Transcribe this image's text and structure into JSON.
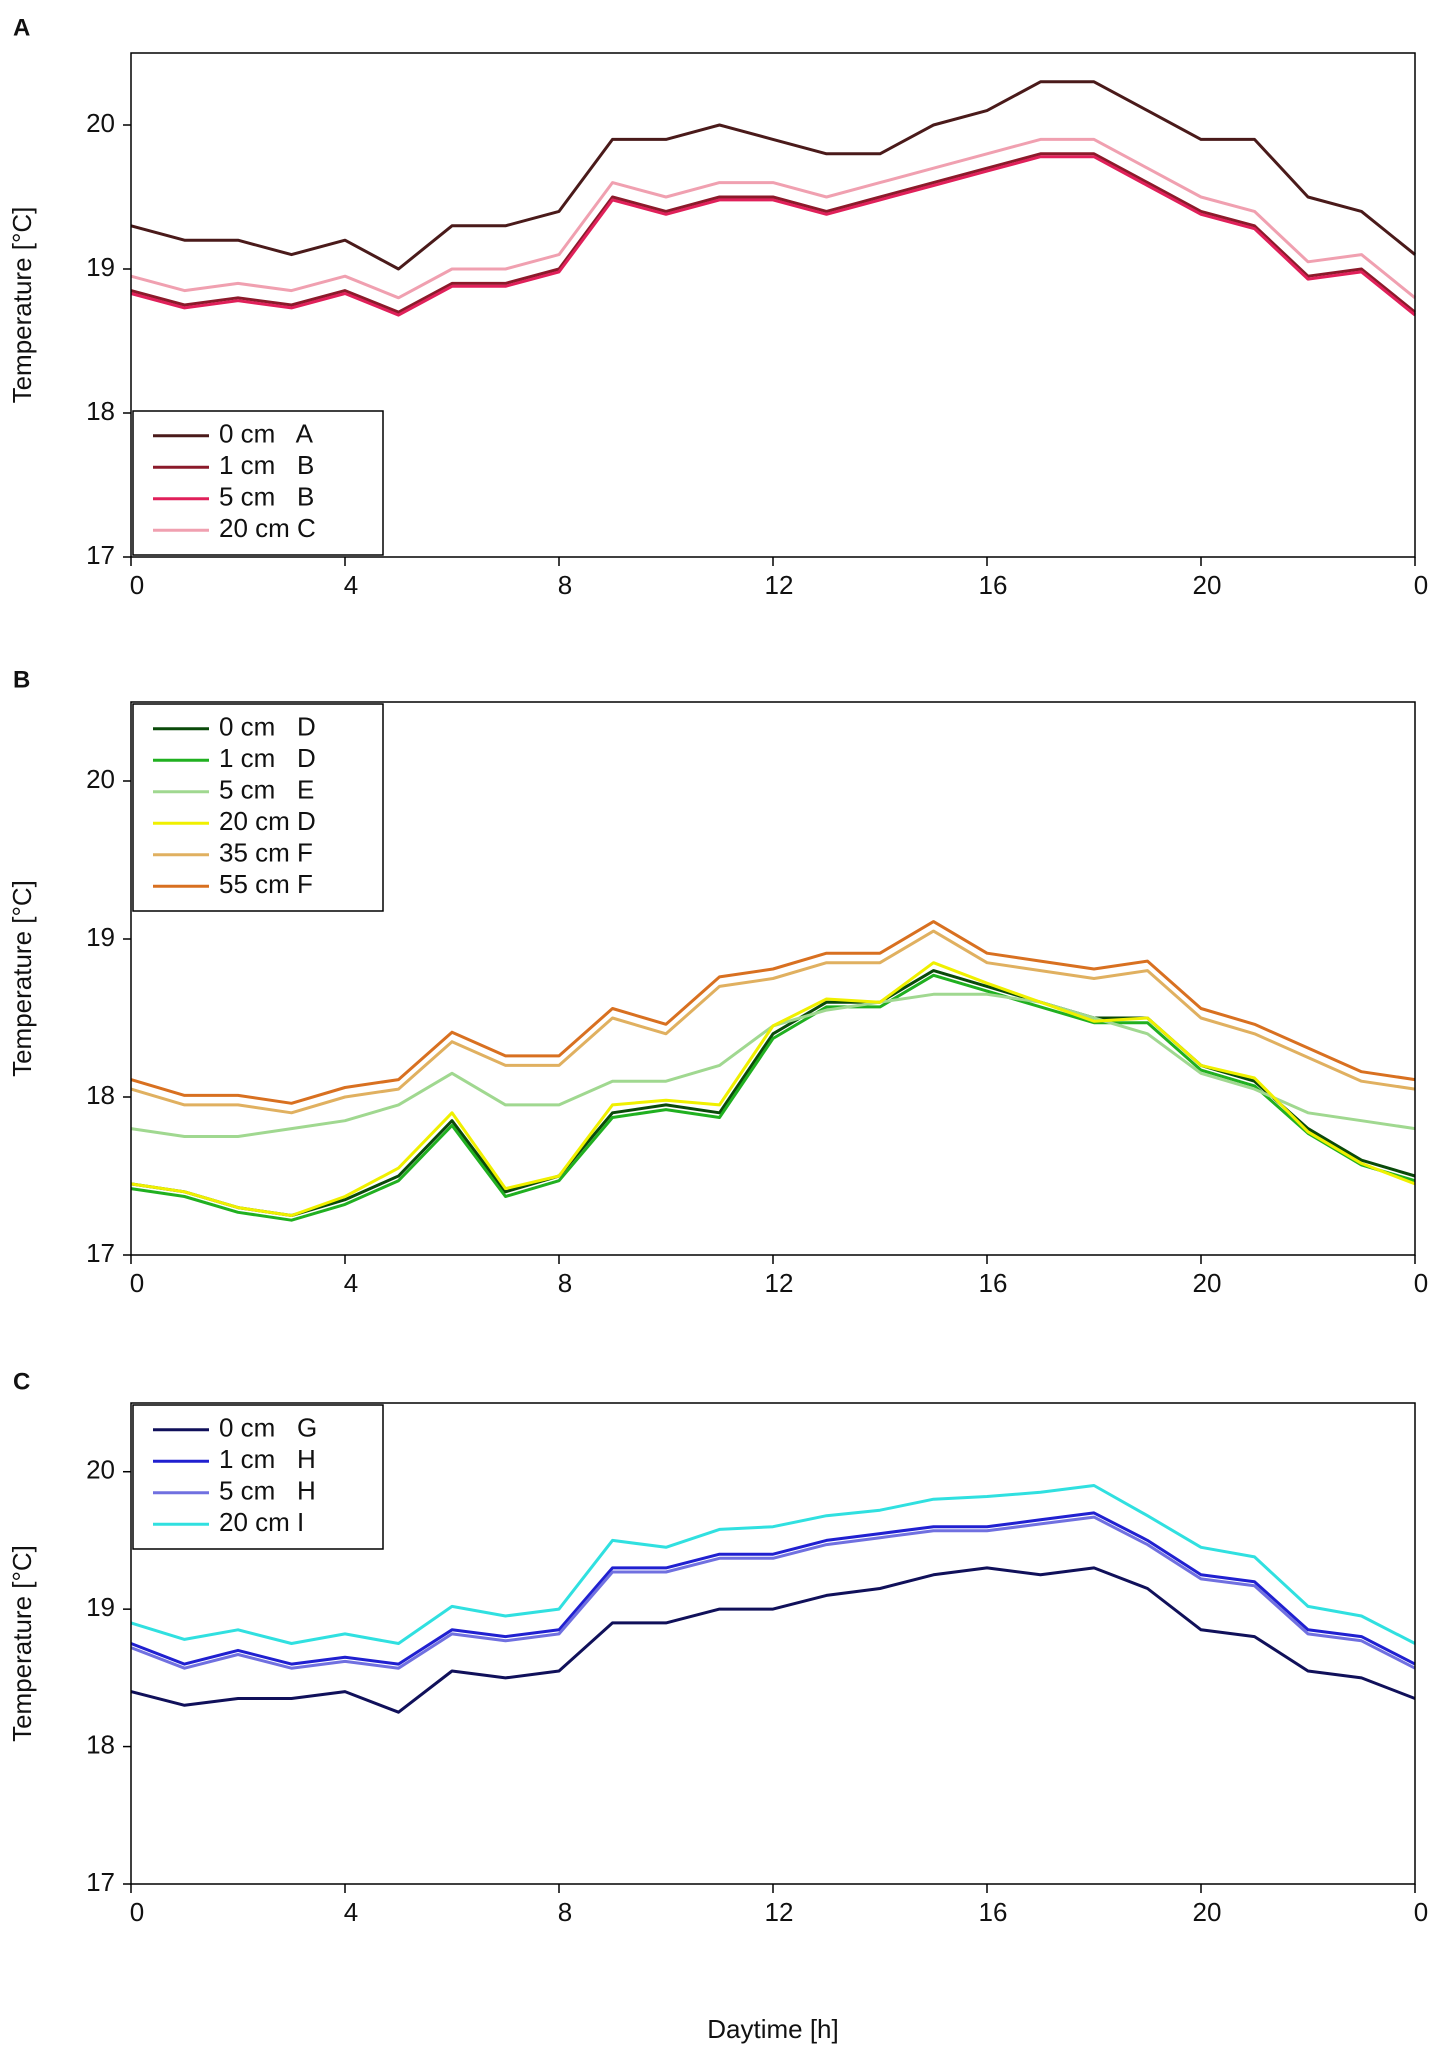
{
  "chart_data": [
    {
      "type": "line",
      "panel": "A",
      "ylabel": "Temperature [°C]",
      "legend": "lower left",
      "x": [
        0,
        1,
        2,
        3,
        4,
        5,
        6,
        7,
        8,
        9,
        10,
        11,
        12,
        13,
        14,
        15,
        16,
        17,
        18,
        19,
        20,
        21,
        22,
        23,
        24
      ],
      "xlim": [
        0,
        24
      ],
      "xticks": [
        0,
        4,
        8,
        12,
        16,
        20,
        {
          "value": 24,
          "label": "0"
        }
      ],
      "ylim": [
        17,
        20.5
      ],
      "yticks": [
        17,
        18,
        19,
        20
      ],
      "series": [
        {
          "name": "0 cm   A",
          "color": "#4a1a1a",
          "values": [
            19.3,
            19.2,
            19.2,
            19.1,
            19.2,
            19.0,
            19.3,
            19.3,
            19.4,
            19.9,
            19.9,
            20.0,
            19.9,
            19.8,
            19.8,
            20.0,
            20.1,
            20.3,
            20.3,
            20.1,
            19.9,
            19.9,
            19.5,
            19.4,
            19.1
          ]
        },
        {
          "name": "1 cm   B",
          "color": "#8b1a2a",
          "values": [
            18.85,
            18.75,
            18.8,
            18.75,
            18.85,
            18.7,
            18.9,
            18.9,
            19.0,
            19.5,
            19.4,
            19.5,
            19.5,
            19.4,
            19.5,
            19.6,
            19.7,
            19.8,
            19.8,
            19.6,
            19.4,
            19.3,
            18.95,
            19.0,
            18.7
          ]
        },
        {
          "name": "5 cm   B",
          "color": "#e0205a",
          "values": [
            18.83,
            18.73,
            18.78,
            18.73,
            18.83,
            18.68,
            18.88,
            18.88,
            18.98,
            19.48,
            19.38,
            19.48,
            19.48,
            19.38,
            19.48,
            19.58,
            19.68,
            19.78,
            19.78,
            19.58,
            19.38,
            19.28,
            18.93,
            18.98,
            18.68
          ]
        },
        {
          "name": "20 cm C",
          "color": "#f0a0b0",
          "values": [
            18.95,
            18.85,
            18.9,
            18.85,
            18.95,
            18.8,
            19.0,
            19.0,
            19.1,
            19.6,
            19.5,
            19.6,
            19.6,
            19.5,
            19.6,
            19.7,
            19.8,
            19.9,
            19.9,
            19.7,
            19.5,
            19.4,
            19.05,
            19.1,
            18.8
          ]
        }
      ]
    },
    {
      "type": "line",
      "panel": "B",
      "ylabel": "Temperature [°C]",
      "legend": "upper left",
      "x": [
        0,
        1,
        2,
        3,
        4,
        5,
        6,
        7,
        8,
        9,
        10,
        11,
        12,
        13,
        14,
        15,
        16,
        17,
        18,
        19,
        20,
        21,
        22,
        23,
        24
      ],
      "xlim": [
        0,
        24
      ],
      "xticks": [
        0,
        4,
        8,
        12,
        16,
        20,
        {
          "value": 24,
          "label": "0"
        }
      ],
      "ylim": [
        17,
        20.5
      ],
      "yticks": [
        17,
        18,
        19,
        20
      ],
      "series": [
        {
          "name": "0 cm   D",
          "color": "#0a4a0a",
          "values": [
            17.45,
            17.4,
            17.3,
            17.25,
            17.35,
            17.5,
            17.85,
            17.4,
            17.5,
            17.9,
            17.95,
            17.9,
            18.4,
            18.6,
            18.6,
            18.8,
            18.7,
            18.6,
            18.5,
            18.5,
            18.2,
            18.1,
            17.8,
            17.6,
            17.5
          ]
        },
        {
          "name": "1 cm   D",
          "color": "#20b020",
          "values": [
            17.42,
            17.37,
            17.27,
            17.22,
            17.32,
            17.47,
            17.82,
            17.37,
            17.47,
            17.87,
            17.92,
            17.87,
            18.37,
            18.57,
            18.57,
            18.77,
            18.67,
            18.57,
            18.47,
            18.47,
            18.17,
            18.07,
            17.77,
            17.57,
            17.47
          ]
        },
        {
          "name": "5 cm   E",
          "color": "#a0d890",
          "values": [
            17.8,
            17.75,
            17.75,
            17.8,
            17.85,
            17.95,
            18.15,
            17.95,
            17.95,
            18.1,
            18.1,
            18.2,
            18.45,
            18.55,
            18.6,
            18.65,
            18.65,
            18.6,
            18.5,
            18.4,
            18.15,
            18.05,
            17.9,
            17.85,
            17.8
          ]
        },
        {
          "name": "20 cm D",
          "color": "#f0f000",
          "values": [
            17.45,
            17.4,
            17.3,
            17.25,
            17.37,
            17.55,
            17.9,
            17.42,
            17.5,
            17.95,
            17.98,
            17.95,
            18.45,
            18.62,
            18.6,
            18.85,
            18.72,
            18.6,
            18.48,
            18.5,
            18.2,
            18.12,
            17.78,
            17.58,
            17.45
          ]
        },
        {
          "name": "35 cm F",
          "color": "#e0b060",
          "values": [
            18.05,
            17.95,
            17.95,
            17.9,
            18.0,
            18.05,
            18.35,
            18.2,
            18.2,
            18.5,
            18.4,
            18.7,
            18.75,
            18.85,
            18.85,
            19.05,
            18.85,
            18.8,
            18.75,
            18.8,
            18.5,
            18.4,
            18.25,
            18.1,
            18.05
          ]
        },
        {
          "name": "55 cm F",
          "color": "#d87020",
          "values": [
            18.11,
            18.01,
            18.01,
            17.96,
            18.06,
            18.11,
            18.41,
            18.26,
            18.26,
            18.56,
            18.46,
            18.76,
            18.81,
            18.91,
            18.91,
            19.11,
            18.91,
            18.86,
            18.81,
            18.86,
            18.56,
            18.46,
            18.31,
            18.16,
            18.11
          ]
        }
      ]
    },
    {
      "type": "line",
      "panel": "C",
      "ylabel": "Temperature [°C]",
      "xlabel": "Daytime [h]",
      "legend": "upper left",
      "x": [
        0,
        1,
        2,
        3,
        4,
        5,
        6,
        7,
        8,
        9,
        10,
        11,
        12,
        13,
        14,
        15,
        16,
        17,
        18,
        19,
        20,
        21,
        22,
        23,
        24
      ],
      "xlim": [
        0,
        24
      ],
      "xticks": [
        0,
        4,
        8,
        12,
        16,
        20,
        {
          "value": 24,
          "label": "0"
        }
      ],
      "ylim": [
        17,
        20.5
      ],
      "yticks": [
        17,
        18,
        19,
        20
      ],
      "series": [
        {
          "name": "0 cm   G",
          "color": "#10105a",
          "values": [
            18.4,
            18.3,
            18.35,
            18.35,
            18.4,
            18.25,
            18.55,
            18.5,
            18.55,
            18.9,
            18.9,
            19.0,
            19.0,
            19.1,
            19.15,
            19.25,
            19.3,
            19.25,
            19.3,
            19.15,
            18.85,
            18.8,
            18.55,
            18.5,
            18.35
          ]
        },
        {
          "name": "1 cm   H",
          "color": "#2020d0",
          "values": [
            18.75,
            18.6,
            18.7,
            18.6,
            18.65,
            18.6,
            18.85,
            18.8,
            18.85,
            19.3,
            19.3,
            19.4,
            19.4,
            19.5,
            19.55,
            19.6,
            19.6,
            19.65,
            19.7,
            19.5,
            19.25,
            19.2,
            18.85,
            18.8,
            18.6
          ]
        },
        {
          "name": "5 cm   H",
          "color": "#7070e0",
          "values": [
            18.72,
            18.57,
            18.67,
            18.57,
            18.62,
            18.57,
            18.82,
            18.77,
            18.82,
            19.27,
            19.27,
            19.37,
            19.37,
            19.47,
            19.52,
            19.57,
            19.57,
            19.62,
            19.67,
            19.47,
            19.22,
            19.17,
            18.82,
            18.77,
            18.57
          ]
        },
        {
          "name": "20 cm I",
          "color": "#30e0e0",
          "values": [
            18.9,
            18.78,
            18.85,
            18.75,
            18.82,
            18.75,
            19.02,
            18.95,
            19.0,
            19.5,
            19.45,
            19.58,
            19.6,
            19.68,
            19.72,
            19.8,
            19.82,
            19.85,
            19.9,
            19.68,
            19.45,
            19.38,
            19.02,
            18.95,
            18.75
          ]
        }
      ]
    }
  ]
}
